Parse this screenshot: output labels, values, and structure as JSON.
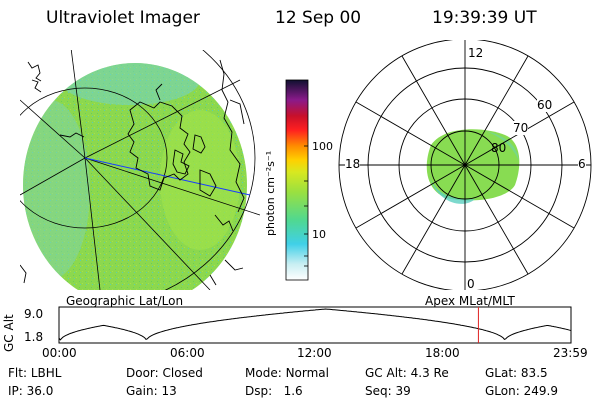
{
  "header": {
    "title": "Ultraviolet Imager",
    "date": "12 Sep 00",
    "time": "19:39:39 UT"
  },
  "colorbar": {
    "unit_label": "photon cm⁻²s⁻¹",
    "ticks": [
      "100",
      "10"
    ]
  },
  "left_panel": {
    "caption": "Geographic Lat/Lon"
  },
  "right_panel": {
    "caption": "Apex MLat/MLT",
    "mlt_labels": {
      "top": "12",
      "left": "18",
      "right": "6",
      "bottom": "0"
    },
    "mlat_labels": [
      "60",
      "70",
      "80"
    ]
  },
  "orbit": {
    "axis_label": "GC Alt",
    "y_max": "9.0",
    "y_min": "1.8",
    "time_ticks": [
      "00:00",
      "06:00",
      "12:00",
      "18:00",
      "23:59"
    ],
    "current_time_hours": 19.66,
    "marker_color": "#e02020"
  },
  "info_rows": [
    [
      {
        "label": "Flt:",
        "value": "LBHL"
      },
      {
        "label": "Door:",
        "value": "Closed"
      },
      {
        "label": "Mode:",
        "value": "Normal"
      },
      {
        "label": "GC Alt:",
        "value": "4.3 Re"
      },
      {
        "label": "GLat:",
        "value": "83.5"
      }
    ],
    [
      {
        "label": "IP:",
        "value": "36.0"
      },
      {
        "label": "Gain:",
        "value": "13"
      },
      {
        "label": "Dsp:",
        "value": "1.6"
      },
      {
        "label": "Seq:",
        "value": "39"
      },
      {
        "label": "GLon:",
        "value": "249.9"
      }
    ]
  ],
  "colors": {
    "aurora_green": "#7ed84a",
    "aurora_cyan": "#5fd0e0"
  }
}
